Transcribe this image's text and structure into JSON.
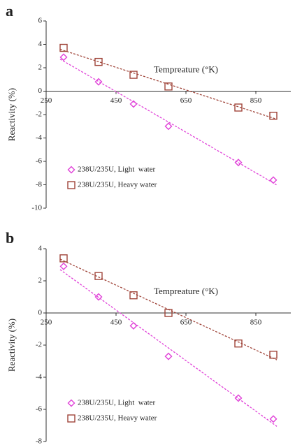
{
  "chart_data": [
    {
      "type": "scatter",
      "panel_label": "a",
      "x_label": "Tempreature (°K)",
      "y_label": "Reactivity (%)",
      "x": [
        300,
        400,
        500,
        600,
        800,
        900
      ],
      "xlim": [
        250,
        950
      ],
      "xticks": [
        250,
        450,
        650,
        850
      ],
      "ylim": [
        -10,
        6
      ],
      "yticks": [
        -10,
        -8,
        -6,
        -4,
        -2,
        0,
        2,
        4,
        6
      ],
      "legend": "lower left",
      "trendline": true,
      "series": [
        {
          "name": "238U/235U, Light  water",
          "color": "#e040d8",
          "marker": "diamond",
          "values": [
            2.9,
            0.8,
            -1.1,
            -3.0,
            -6.1,
            -7.6
          ]
        },
        {
          "name": "238U/235U, Heavy water",
          "color": "#a0453a",
          "marker": "square",
          "values": [
            3.7,
            2.5,
            1.4,
            0.4,
            -1.4,
            -2.1
          ]
        }
      ]
    },
    {
      "type": "scatter",
      "panel_label": "b",
      "x_label": "Tempreature (°K)",
      "y_label": "Reactivity (%)",
      "x": [
        300,
        400,
        500,
        600,
        800,
        900
      ],
      "xlim": [
        250,
        950
      ],
      "xticks": [
        250,
        450,
        650,
        850
      ],
      "ylim": [
        -8,
        4
      ],
      "yticks": [
        -8,
        -6,
        -4,
        -2,
        0,
        2,
        4
      ],
      "legend": "lower left",
      "trendline": true,
      "series": [
        {
          "name": "238U/235U, Light  water",
          "color": "#e040d8",
          "marker": "diamond",
          "values": [
            2.9,
            1.0,
            -0.8,
            -2.7,
            -5.3,
            -6.6
          ]
        },
        {
          "name": "238U/235U, Heavy water",
          "color": "#a0453a",
          "marker": "square",
          "values": [
            3.4,
            2.3,
            1.1,
            0.0,
            -1.9,
            -2.6
          ]
        }
      ]
    }
  ]
}
